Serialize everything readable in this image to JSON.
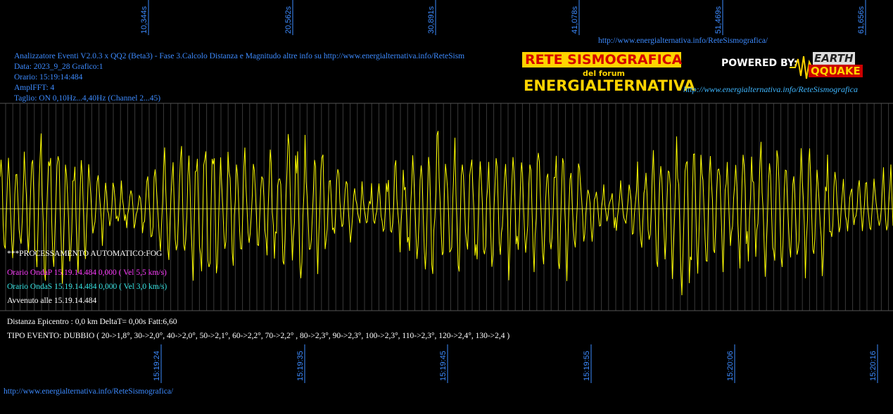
{
  "header": {
    "line1": "Analizzatore Eventi V2.0.3 x QQ2 (Beta3) - Fase 3.Calcolo Distanza e Magnitudo altre info su http://www.energialternativa.info/ReteSism",
    "line2": "Data: 2023_9_28 Grafico:1",
    "line3": "Orario: 15:19:14:484",
    "line4": "AmplFFT: 4",
    "line5": "Taglio: ON 0,10Hz...4,40Hz       (Channel 2...45)"
  },
  "top_url": "http://www.energialternativa.info/ReteSismografica/",
  "bottom_url": "http://www.energialternativa.info/ReteSismografica/",
  "logo": {
    "title": "RETE SISMOGRAFICA",
    "subtitle": "del forum",
    "brand": "ENERGIALTERNATIVA",
    "powered": "POWERED BY:",
    "earth": "EARTH",
    "quake": "QQUAKE",
    "url": "http://www.energialternativa.info/ReteSismografica"
  },
  "info": {
    "processing": "***PROCESSAMENTO AUTOMATICO:FOG",
    "onda_p": "Orario OndaP 15.19.14.484  0,000 ( Vel 5,5 km/s)",
    "onda_s": "Orario OndaS 15.19.14.484  0,000 ( Vel 3,0 km/s)",
    "avvenuto": "Avvenuto alle 15.19.14.484",
    "distanza": "Distanza Epicentro : 0,0 km DeltaT= 0,00s  Fatt:6,60",
    "tipo": "TIPO EVENTO: DUBBIO ( 20->1,8°, 30->2,0°, 40->2,0°, 50->2,1°, 60->2,2°, 70->2,2° , 80->2,3°, 90->2,3°, 100->2,3°, 110->2,3°, 120->2,4°, 130->2,4 )"
  },
  "colors": {
    "background": "#000000",
    "trace": "#ffff00",
    "axis_text": "#3d8bff",
    "onda_p": "#ff3cff",
    "onda_s": "#37e5e5",
    "grid": "#555555"
  },
  "chart_data": {
    "type": "line",
    "series": [
      {
        "values_note_free": true
      }
    ],
    "top_ticks": [
      "10,344s",
      "20,562s",
      "30,891s",
      "41,078s",
      "51,469s",
      "61,656s"
    ],
    "bottom_ticks": [
      "15:19:24",
      "15:19:35",
      "15:19:45",
      "15:19:55",
      "15:20:06",
      "15:20:16"
    ],
    "grid": true
  }
}
